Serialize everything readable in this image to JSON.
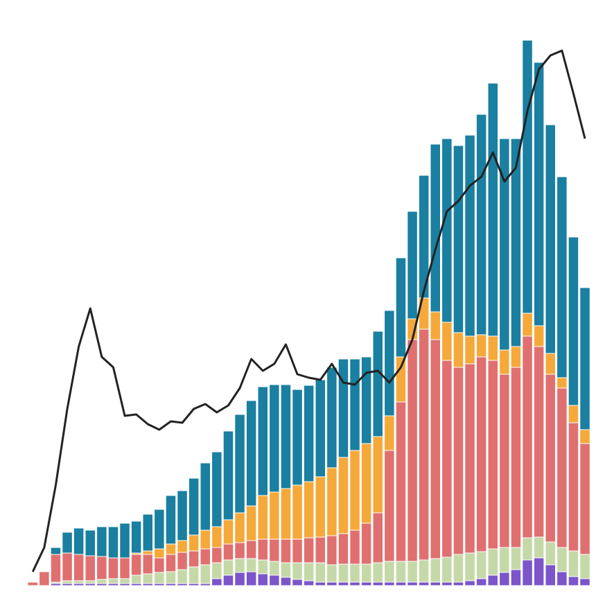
{
  "chart_data": {
    "type": "bar",
    "stacked": true,
    "ylim": [
      0,
      845
    ],
    "series": [
      {
        "type": "bar",
        "color": "#7b55c9",
        "values": [
          0,
          0,
          3,
          3,
          3,
          3,
          3,
          3,
          3,
          3,
          3,
          3,
          3,
          3,
          3,
          3,
          10,
          15,
          19,
          20,
          17,
          15,
          12,
          9,
          7,
          5,
          5,
          5,
          5,
          5,
          5,
          5,
          5,
          5,
          5,
          5,
          5,
          5,
          7,
          10,
          15,
          19,
          23,
          37,
          40,
          30,
          20,
          13,
          10
        ]
      },
      {
        "type": "bar",
        "color": "#c5d9a8",
        "values": [
          0,
          0,
          2,
          4,
          4,
          4,
          6,
          7,
          7,
          12,
          14,
          16,
          17,
          20,
          24,
          27,
          23,
          22,
          20,
          19,
          20,
          20,
          21,
          24,
          26,
          28,
          25,
          26,
          26,
          26,
          28,
          30,
          30,
          30,
          32,
          34,
          36,
          40,
          40,
          39,
          38,
          36,
          32,
          32,
          30,
          33,
          35,
          37,
          35
        ]
      },
      {
        "type": "bar",
        "color": "#e07070",
        "values": [
          5,
          20,
          40,
          40,
          38,
          36,
          33,
          30,
          30,
          30,
          28,
          21,
          25,
          25,
          23,
          23,
          22,
          23,
          23,
          26,
          30,
          32,
          34,
          34,
          36,
          37,
          42,
          44,
          49,
          59,
          72,
          160,
          230,
          320,
          333,
          316,
          284,
          270,
          273,
          281,
          272,
          250,
          260,
          291,
          275,
          242,
          230,
          185,
          160
        ]
      },
      {
        "type": "bar",
        "color": "#f5a93a",
        "values": [
          0,
          0,
          0,
          0,
          0,
          0,
          0,
          0,
          0,
          2,
          5,
          13,
          15,
          17,
          23,
          27,
          30,
          35,
          43,
          50,
          63,
          68,
          73,
          78,
          81,
          87,
          98,
          110,
          115,
          115,
          110,
          50,
          65,
          30,
          45,
          40,
          55,
          50,
          40,
          32,
          35,
          35,
          30,
          33,
          30,
          30,
          15,
          25,
          20
        ]
      },
      {
        "type": "bar",
        "color": "#1a7fa0",
        "values": [
          0,
          0,
          10,
          30,
          38,
          37,
          43,
          45,
          50,
          46,
          53,
          57,
          70,
          72,
          82,
          97,
          108,
          128,
          142,
          152,
          157,
          155,
          150,
          138,
          139,
          140,
          145,
          142,
          132,
          125,
          152,
          152,
          143,
          155,
          177,
          242,
          265,
          270,
          290,
          318,
          365,
          305,
          300,
          394,
          380,
          330,
          290,
          243,
          205
        ]
      },
      {
        "type": "line",
        "color": "#222222",
        "values": [
          20,
          55,
          145,
          255,
          345,
          400,
          330,
          315,
          245,
          247,
          233,
          225,
          237,
          235,
          255,
          262,
          250,
          260,
          285,
          327,
          310,
          320,
          348,
          305,
          300,
          297,
          320,
          293,
          290,
          307,
          310,
          293,
          315,
          355,
          425,
          485,
          540,
          555,
          577,
          590,
          625,
          583,
          603,
          685,
          745,
          765,
          772,
          710,
          645
        ]
      }
    ]
  }
}
